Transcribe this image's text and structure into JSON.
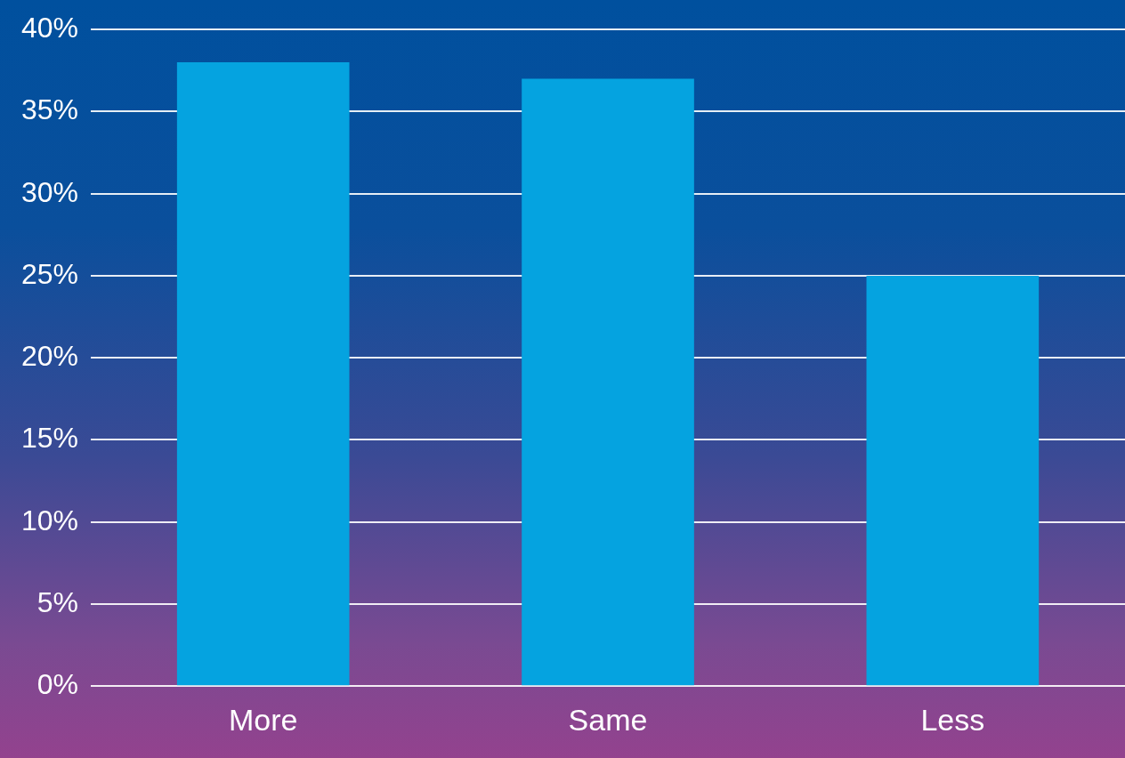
{
  "chart_data": {
    "type": "bar",
    "categories": [
      "More",
      "Same",
      "Less"
    ],
    "values": [
      38,
      37,
      25
    ],
    "color": "#05a3e0",
    "ylim": [
      0,
      40
    ],
    "yticks": [
      {
        "value": 0,
        "label": "0%"
      },
      {
        "value": 5,
        "label": "5%"
      },
      {
        "value": 10,
        "label": "10%"
      },
      {
        "value": 15,
        "label": "15%"
      },
      {
        "value": 20,
        "label": "20%"
      },
      {
        "value": 25,
        "label": "25%"
      },
      {
        "value": 30,
        "label": "30%"
      },
      {
        "value": 35,
        "label": "35%"
      },
      {
        "value": 40,
        "label": "40%"
      }
    ],
    "grid": "y",
    "legend": false
  }
}
